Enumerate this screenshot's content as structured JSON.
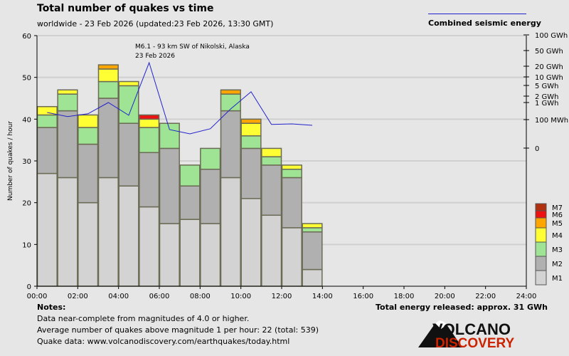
{
  "header": {
    "title": "Total number of quakes vs time",
    "subtitle": "worldwide - 23 Feb 2026 (updated:23 Feb 2026, 13:30 GMT)",
    "energy_legend": "Combined seismic energy"
  },
  "chart_data": {
    "type": "bar",
    "stacked": true,
    "title": "Total number of quakes vs time",
    "ylabel": "Number of quakes / hour",
    "ylim": [
      0,
      60
    ],
    "yticks": [
      "0",
      "10",
      "20",
      "30",
      "40",
      "50",
      "60"
    ],
    "xticks": [
      "00:00",
      "02:00",
      "04:00",
      "06:00",
      "08:00",
      "10:00",
      "12:00",
      "14:00",
      "16:00",
      "18:00",
      "20:00",
      "22:00",
      "24:00"
    ],
    "categories": [
      "00",
      "01",
      "02",
      "03",
      "04",
      "05",
      "06",
      "07",
      "08",
      "09",
      "10",
      "11",
      "12",
      "13"
    ],
    "series": [
      {
        "name": "M1",
        "color": "#d3d3d3",
        "values": [
          27,
          26,
          20,
          26,
          24,
          19,
          15,
          16,
          15,
          26,
          21,
          17,
          14,
          4
        ]
      },
      {
        "name": "M2",
        "color": "#b0b0b0",
        "values": [
          11,
          16,
          14,
          19,
          15,
          13,
          18,
          8,
          13,
          16,
          12,
          12,
          12,
          9
        ]
      },
      {
        "name": "M3",
        "color": "#9fe494",
        "values": [
          3,
          4,
          4,
          4,
          9,
          6,
          6,
          5,
          5,
          4,
          3,
          2,
          2,
          1
        ]
      },
      {
        "name": "M4",
        "color": "#ffff33",
        "values": [
          2,
          1,
          3,
          3,
          1,
          2,
          0,
          0,
          0,
          0,
          3,
          2,
          1,
          1
        ]
      },
      {
        "name": "M5",
        "color": "#ffa500",
        "values": [
          0,
          0,
          0,
          1,
          0,
          0,
          0,
          0,
          0,
          1,
          1,
          0,
          0,
          0
        ]
      },
      {
        "name": "M6",
        "color": "#ee1111",
        "values": [
          0,
          0,
          0,
          0,
          0,
          1,
          0,
          0,
          0,
          0,
          0,
          0,
          0,
          0
        ]
      },
      {
        "name": "M7",
        "color": "#b03010",
        "values": [
          0,
          0,
          0,
          0,
          0,
          0,
          0,
          0,
          0,
          0,
          0,
          0,
          0,
          0
        ]
      }
    ],
    "energy": {
      "name": "Combined seismic energy",
      "unit": "GWh",
      "color": "#2222cc",
      "values": [
        0.26,
        0.15,
        0.22,
        1.0,
        0.18,
        24.6,
        0.065,
        0.05,
        0.068,
        0.42,
        2.9,
        0.083,
        0.085,
        0.08
      ]
    },
    "energy_ticks": [
      {
        "v": 100,
        "label": "100 GWh"
      },
      {
        "v": 50,
        "label": "50 GWh"
      },
      {
        "v": 20,
        "label": "20 GWh"
      },
      {
        "v": 10,
        "label": "10 GWh"
      },
      {
        "v": 5,
        "label": "5 GWh"
      },
      {
        "v": 2,
        "label": "2 GWh"
      },
      {
        "v": 1,
        "label": "1 GWh"
      },
      {
        "v": 0.1,
        "label": "100 MWh"
      },
      {
        "v": 0,
        "label": "0"
      }
    ],
    "annotation": {
      "line1": "M6.1 - 93 km SW of Nikolski, Alaska",
      "line2": "23 Feb 2026"
    }
  },
  "notes": {
    "title": "Notes:",
    "lines": [
      "Data near-complete from magnitudes of 4.0 or higher.",
      "Average number of quakes above magnitude 1 per hour: 22 (total: 539)",
      "Quake data: www.volcanodiscovery.com/earthquakes/today.html"
    ],
    "total_energy": "Total energy released: approx. 31 GWh"
  },
  "logo": {
    "top": "VOLCANO",
    "bottom": "DISCOVERY"
  }
}
